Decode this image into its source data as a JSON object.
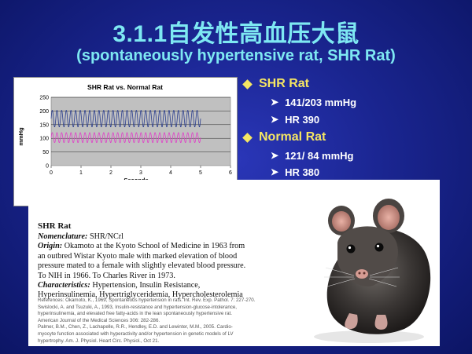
{
  "slide": {
    "title": "3.1.1自发性高血压大鼠",
    "subtitle": "(spontaneously hypertensive rat, SHR Rat)"
  },
  "bullets": [
    {
      "label": "SHR Rat",
      "subs": [
        "141/203 mmHg",
        "HR 390"
      ]
    },
    {
      "label": "Normal Rat",
      "subs": [
        "121/ 84 mmHg",
        "HR 380"
      ]
    }
  ],
  "chart_data": {
    "type": "line",
    "title": "SHR Rat vs. Normal Rat",
    "xlabel": "Seconds",
    "ylabel": "mmHg",
    "xlim": [
      0,
      6
    ],
    "ylim": [
      0,
      250
    ],
    "xticks": [
      "0",
      "1",
      "2",
      "3",
      "4",
      "5",
      "6"
    ],
    "yticks": [
      "0",
      "50",
      "100",
      "150",
      "200",
      "250"
    ],
    "grid": true,
    "legend": "bottom",
    "series": [
      {
        "name": "SHR Rat",
        "color": "#2c3f8f",
        "min": 141,
        "max": 203,
        "cycles": 32,
        "x_end": 5
      },
      {
        "name": "Normal Rat",
        "color": "#e040c8",
        "min": 84,
        "max": 121,
        "cycles": 32,
        "x_end": 5
      }
    ]
  },
  "card": {
    "heading": "SHR Rat",
    "nomenclature_label": "Nomenclature:",
    "nomenclature_value": " SHR/NCrl",
    "origin_label": "Origin:",
    "origin_lines": [
      " Okamoto at the Kyoto School of Medicine in 1963 from",
      "an outbred Wistar Kyoto male with marked elevation of blood",
      "pressure mated to a female with slightly elevated blood pressure.",
      "To NIH in 1966. To Charles River in 1973."
    ],
    "characteristics_label": "Characteristics:",
    "characteristics_lines": [
      " Hypertension, Insulin Resistance,",
      "Hyperinsulinemia, Hypertriglyceridemia, Hypercholesterolemia"
    ],
    "references": [
      "References: Okamoto, K., 1969, Spontaneous hypertension in rats. Int. Rev. Exp. Pathol. 7: 227-270.",
      "Swislocki, A. and Tsuzuki, A., 1993, Insulin-resistance and hypertension-glucose-intolerance,",
      "hyperinsulinemia, and elevated free fatty-acids in the lean spontaneously hypertensive rat.",
      "American Journal of the Medical Sciences 306: 282-286.",
      "Palmer, B.M., Chen, Z., Lachapelle, R.R., Hendley, E.D. and Lewinter, M.M., 2005. Cardio-",
      "myocyte function associated with hyperactivity and/or hypertension in genetic models of LV",
      "hypertrophy. Am. J. Physiol. Heart Circ. Physiol., Oct 21."
    ]
  },
  "colors": {
    "title": "#7ee8f2",
    "bullet": "#f5e663",
    "background": "#1a2590"
  }
}
